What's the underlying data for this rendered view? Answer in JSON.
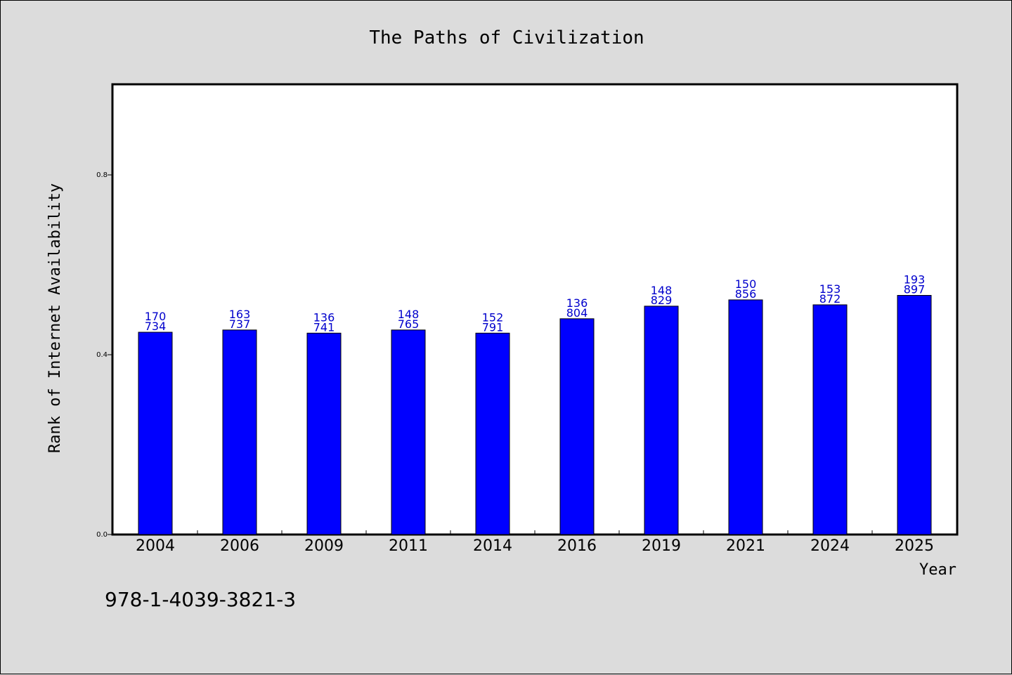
{
  "chart_data": {
    "type": "bar",
    "title": "The Paths of Civilization",
    "xlabel": "Year",
    "ylabel": "Rank of Internet Availability",
    "categories": [
      "2004",
      "2006",
      "2009",
      "2011",
      "2014",
      "2016",
      "2019",
      "2021",
      "2024",
      "2025"
    ],
    "values": [
      0.45,
      0.455,
      0.448,
      0.455,
      0.448,
      0.48,
      0.508,
      0.522,
      0.511,
      0.532
    ],
    "data_labels": [
      [
        "170",
        "734"
      ],
      [
        "163",
        "737"
      ],
      [
        "136",
        "741"
      ],
      [
        "148",
        "765"
      ],
      [
        "152",
        "791"
      ],
      [
        "136",
        "804"
      ],
      [
        "148",
        "829"
      ],
      [
        "150",
        "856"
      ],
      [
        "153",
        "872"
      ],
      [
        "193",
        "897"
      ]
    ],
    "yticks": [
      0.0,
      0.4,
      0.8
    ],
    "ytick_labels": [
      "0.0",
      "0.4",
      "0.8"
    ],
    "ylim": [
      0.0,
      1.0
    ],
    "grid": false,
    "legend": false,
    "bar_color": "#0000ff",
    "label_color": "#0000cc"
  },
  "footer_text": "978-1-4039-3821-3"
}
